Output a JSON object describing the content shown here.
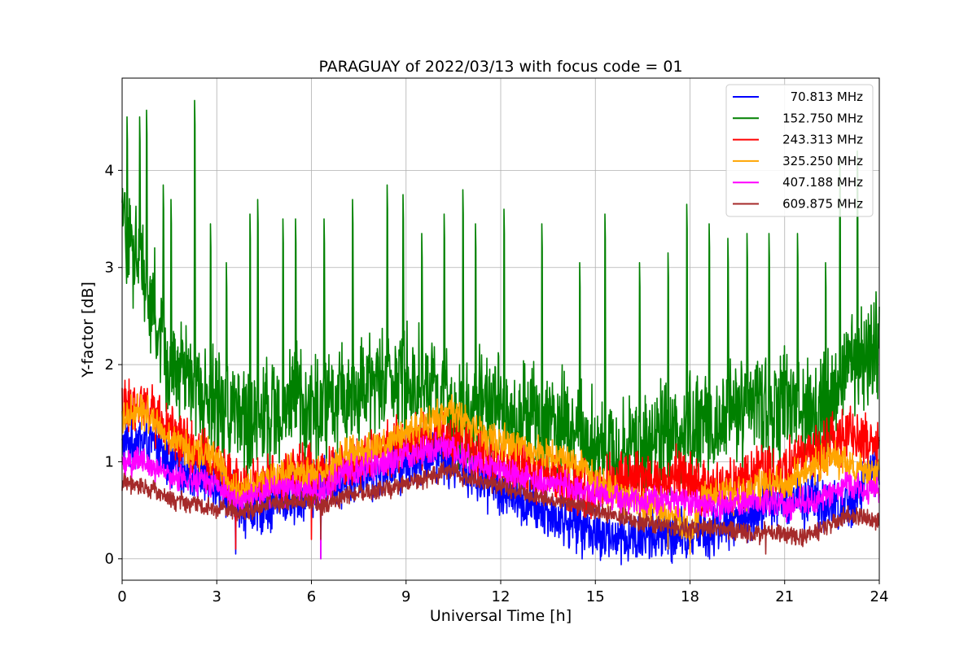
{
  "chart_data": {
    "type": "line",
    "title": "PARAGUAY of 2022/03/13 with focus code = 01",
    "xlabel": "Universal Time [h]",
    "ylabel": "Y-factor [dB]",
    "xlim": [
      0,
      24
    ],
    "ylim": [
      -0.22,
      4.95
    ],
    "xticks": [
      0,
      3,
      6,
      9,
      12,
      15,
      18,
      21,
      24
    ],
    "yticks": [
      0,
      1,
      2,
      3,
      4
    ],
    "grid": true,
    "legend_position": "top-right",
    "x_step_hours": 0.5,
    "series": [
      {
        "name": "70.813 MHz",
        "color": "#0000ff",
        "values": [
          1.15,
          1.22,
          1.18,
          1.0,
          0.92,
          0.88,
          0.8,
          0.62,
          0.5,
          0.55,
          0.6,
          0.62,
          0.68,
          0.78,
          0.82,
          0.88,
          0.92,
          0.95,
          1.0,
          1.05,
          1.1,
          1.0,
          0.9,
          0.8,
          0.72,
          0.62,
          0.52,
          0.45,
          0.4,
          0.35,
          0.28,
          0.22,
          0.2,
          0.22,
          0.22,
          0.2,
          0.25,
          0.3,
          0.35,
          0.4,
          0.5,
          0.55,
          0.6,
          0.6,
          0.6,
          0.55,
          0.55,
          0.8,
          0.95
        ],
        "spike_amp": 0.35,
        "dips": [
          [
            3.6,
            0.05
          ],
          [
            6.3,
            0.0
          ],
          [
            15.3,
            0.05
          ],
          [
            17.3,
            0.05
          ],
          [
            17.9,
            0.05
          ]
        ]
      },
      {
        "name": "152.750 MHz",
        "color": "#008000",
        "values": [
          3.4,
          3.1,
          2.6,
          1.95,
          1.85,
          1.75,
          1.55,
          1.5,
          1.4,
          1.45,
          1.55,
          1.6,
          1.55,
          1.55,
          1.65,
          1.7,
          1.85,
          1.9,
          1.85,
          1.75,
          1.65,
          1.55,
          1.55,
          1.6,
          1.55,
          1.5,
          1.45,
          1.4,
          1.35,
          1.25,
          1.2,
          1.1,
          1.1,
          1.15,
          1.25,
          1.3,
          1.35,
          1.4,
          1.45,
          1.5,
          1.55,
          1.55,
          1.55,
          1.6,
          1.5,
          1.55,
          2.1,
          2.0,
          2.2
        ],
        "spike_amp": 0.7,
        "big_spikes": [
          [
            0.15,
            4.55
          ],
          [
            0.55,
            4.55
          ],
          [
            0.78,
            4.62
          ],
          [
            1.3,
            3.85
          ],
          [
            1.55,
            3.7
          ],
          [
            2.3,
            4.72
          ],
          [
            2.8,
            3.45
          ],
          [
            3.3,
            3.05
          ],
          [
            4.05,
            3.55
          ],
          [
            4.3,
            3.7
          ],
          [
            5.1,
            3.5
          ],
          [
            5.5,
            3.5
          ],
          [
            6.4,
            3.5
          ],
          [
            7.3,
            3.7
          ],
          [
            8.4,
            3.85
          ],
          [
            8.9,
            3.75
          ],
          [
            9.5,
            3.35
          ],
          [
            10.2,
            3.55
          ],
          [
            10.8,
            3.8
          ],
          [
            11.2,
            3.45
          ],
          [
            12.1,
            3.6
          ],
          [
            13.3,
            3.45
          ],
          [
            14.5,
            3.05
          ],
          [
            15.3,
            3.55
          ],
          [
            16.4,
            3.05
          ],
          [
            17.3,
            3.15
          ],
          [
            17.9,
            3.65
          ],
          [
            18.6,
            3.45
          ],
          [
            19.2,
            3.3
          ],
          [
            19.8,
            3.35
          ],
          [
            20.5,
            3.35
          ],
          [
            21.4,
            3.35
          ],
          [
            22.3,
            3.05
          ],
          [
            22.75,
            4.1
          ],
          [
            23.3,
            4.2
          ],
          [
            23.9,
            2.75
          ]
        ]
      },
      {
        "name": "243.313 MHz",
        "color": "#ff0000",
        "values": [
          1.55,
          1.6,
          1.5,
          1.3,
          1.2,
          1.1,
          0.9,
          0.78,
          0.7,
          0.8,
          0.85,
          0.9,
          0.92,
          0.88,
          1.0,
          1.05,
          1.1,
          1.15,
          1.2,
          1.25,
          1.28,
          1.25,
          1.15,
          1.05,
          1.0,
          0.95,
          0.9,
          0.85,
          0.8,
          0.75,
          0.72,
          0.8,
          0.85,
          0.8,
          0.82,
          0.85,
          0.8,
          0.75,
          0.75,
          0.78,
          0.85,
          0.9,
          0.95,
          1.05,
          1.1,
          1.2,
          1.3,
          1.2,
          1.15
        ],
        "spike_amp": 0.35,
        "dips": [
          [
            3.6,
            0.1
          ],
          [
            6.0,
            0.2
          ]
        ]
      },
      {
        "name": "325.250 MHz",
        "color": "#ffa500",
        "values": [
          1.45,
          1.55,
          1.45,
          1.25,
          1.15,
          1.1,
          1.05,
          0.7,
          0.72,
          0.8,
          0.88,
          0.92,
          0.85,
          0.88,
          1.05,
          1.1,
          1.15,
          1.2,
          1.3,
          1.4,
          1.45,
          1.55,
          1.35,
          1.3,
          1.2,
          1.15,
          1.1,
          1.05,
          1.0,
          0.95,
          0.8,
          0.7,
          0.6,
          0.55,
          0.5,
          0.45,
          0.3,
          0.7,
          0.68,
          0.65,
          0.7,
          0.75,
          0.8,
          0.85,
          0.95,
          1.05,
          0.95,
          0.9,
          0.88
        ],
        "spike_amp": 0.22,
        "dips": [
          [
            17.3,
            0.1
          ],
          [
            18.0,
            0.05
          ]
        ]
      },
      {
        "name": "407.188 MHz",
        "color": "#ff00ff",
        "values": [
          0.95,
          1.0,
          0.95,
          0.85,
          0.8,
          0.8,
          0.78,
          0.62,
          0.6,
          0.68,
          0.7,
          0.72,
          0.7,
          0.72,
          0.9,
          0.92,
          0.95,
          1.0,
          1.05,
          1.1,
          1.15,
          1.1,
          1.0,
          0.95,
          0.9,
          0.85,
          0.8,
          0.78,
          0.75,
          0.72,
          0.68,
          0.65,
          0.62,
          0.6,
          0.62,
          0.6,
          0.58,
          0.55,
          0.55,
          0.58,
          0.6,
          0.58,
          0.55,
          0.58,
          0.62,
          0.68,
          0.75,
          0.7,
          0.7
        ],
        "spike_amp": 0.18,
        "dips": [
          [
            6.3,
            0.0
          ]
        ]
      },
      {
        "name": "609.875 MHz",
        "color": "#a52a2a",
        "values": [
          0.78,
          0.75,
          0.72,
          0.62,
          0.58,
          0.55,
          0.52,
          0.5,
          0.48,
          0.55,
          0.58,
          0.6,
          0.58,
          0.55,
          0.65,
          0.68,
          0.7,
          0.72,
          0.78,
          0.82,
          0.88,
          0.9,
          0.82,
          0.78,
          0.75,
          0.7,
          0.65,
          0.62,
          0.58,
          0.55,
          0.5,
          0.45,
          0.42,
          0.38,
          0.35,
          0.33,
          0.3,
          0.32,
          0.3,
          0.28,
          0.25,
          0.28,
          0.25,
          0.22,
          0.28,
          0.35,
          0.45,
          0.42,
          0.38
        ],
        "spike_amp": 0.12,
        "dips": [
          [
            6.3,
            0.2
          ],
          [
            20.4,
            0.05
          ]
        ]
      }
    ]
  }
}
